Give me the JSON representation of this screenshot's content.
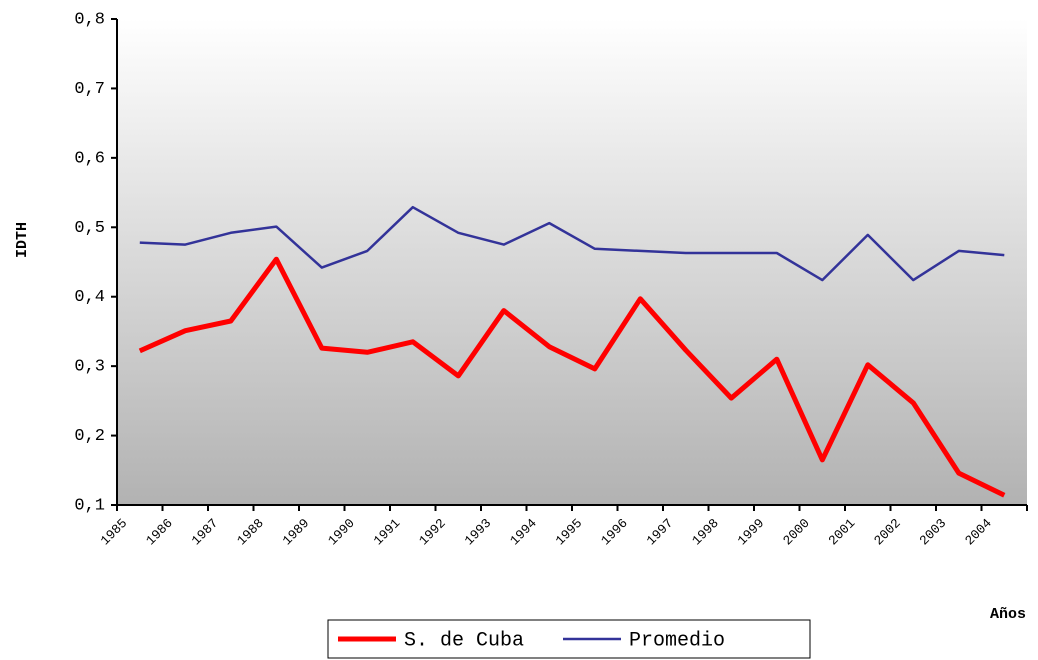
{
  "chart_data": {
    "type": "line",
    "y_label": "IDTH",
    "x_label": "Años",
    "categories": [
      "1985",
      "1986",
      "1987",
      "1988",
      "1989",
      "1990",
      "1991",
      "1992",
      "1993",
      "1994",
      "1995",
      "1996",
      "1997",
      "1998",
      "1999",
      "2000",
      "2001",
      "2002",
      "2003",
      "2004"
    ],
    "series": [
      {
        "name": "S. de Cuba",
        "color": "#ff0000",
        "values": [
          0.322,
          0.351,
          0.365,
          0.454,
          0.326,
          0.32,
          0.335,
          0.286,
          0.38,
          0.328,
          0.296,
          0.397,
          0.323,
          0.254,
          0.31,
          0.165,
          0.302,
          0.247,
          0.146,
          0.114
        ]
      },
      {
        "name": "Promedio",
        "color": "#333399",
        "values": [
          0.478,
          0.475,
          0.492,
          0.501,
          0.442,
          0.466,
          0.529,
          0.492,
          0.475,
          0.506,
          0.469,
          0.466,
          0.463,
          0.463,
          0.463,
          0.424,
          0.489,
          0.424,
          0.466,
          0.46
        ]
      }
    ],
    "ylim": [
      0.1,
      0.8
    ],
    "yticks": [
      {
        "value": 0.1,
        "label": "0,1"
      },
      {
        "value": 0.2,
        "label": "0,2"
      },
      {
        "value": 0.3,
        "label": "0,3"
      },
      {
        "value": 0.4,
        "label": "0,4"
      },
      {
        "value": 0.5,
        "label": "0,5"
      },
      {
        "value": 0.6,
        "label": "0,6"
      },
      {
        "value": 0.7,
        "label": "0,7"
      },
      {
        "value": 0.8,
        "label": "0,8"
      }
    ],
    "legend": "bottom"
  }
}
